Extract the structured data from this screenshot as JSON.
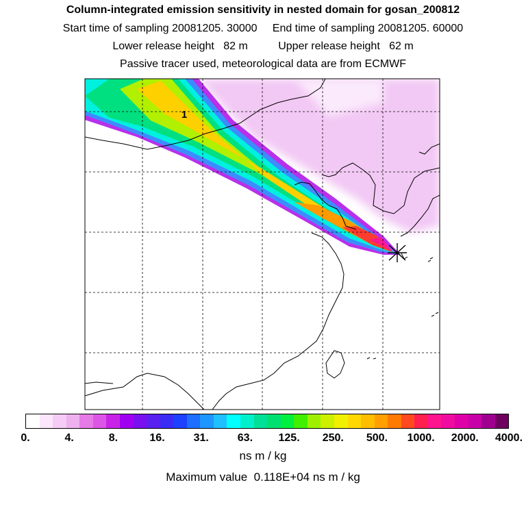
{
  "titles": {
    "line1": "Column-integrated emission sensitivity in nested domain for gosan_200812",
    "line2": "Start time of sampling 20081205. 30000     End time of sampling 20081205. 60000",
    "line3": "Lower release height   82 m          Upper release height   62 m",
    "line4": "Passive tracer used, meteorological data are from ECMWF"
  },
  "map": {
    "marker_label": "1",
    "release_site_symbol": "asterisk"
  },
  "colorbar": {
    "colors": [
      "#ffffff",
      "#fbe6fb",
      "#f5ccf5",
      "#eeb0ee",
      "#e67ae6",
      "#dd55e6",
      "#c824e8",
      "#a000f0",
      "#7a10f0",
      "#5a20f0",
      "#3a2cf5",
      "#1e40ff",
      "#1e6eff",
      "#1e96ff",
      "#1ec0ff",
      "#00ffff",
      "#00f0cc",
      "#00e096",
      "#00e070",
      "#00f040",
      "#40f000",
      "#9ef000",
      "#ccf000",
      "#f0f000",
      "#ffd800",
      "#ffbe00",
      "#ffa000",
      "#ff7a00",
      "#ff4a20",
      "#ff2050",
      "#ff1490",
      "#f00ca0",
      "#e000a8",
      "#c800a8",
      "#a00090",
      "#700060"
    ],
    "tick_labels": [
      "0.",
      "4.",
      "8.",
      "16.",
      "31.",
      "63.",
      "125.",
      "250.",
      "500.",
      "1000.",
      "2000.",
      "4000."
    ],
    "units": "ns m / kg"
  },
  "max_value_text": "Maximum value  0.118E+04 ns m / kg"
}
